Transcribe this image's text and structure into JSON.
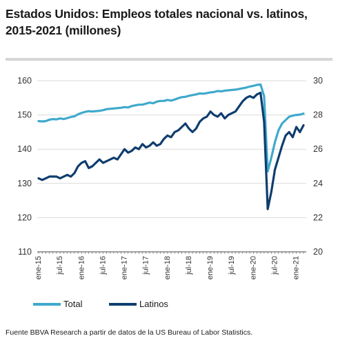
{
  "title": "Estados Unidos: Empleos totales nacional vs. latinos, 2015-2021 (millones)",
  "source": "Fuente BBVA Research a partir de datos de la US Bureau of Labor Statistics.",
  "colors": {
    "total": "#3fa9cc",
    "latinos": "#0f3d6e",
    "grid": "#d9d9d9"
  },
  "chart_data": {
    "type": "line",
    "x_tick_labels": [
      "ene-15",
      "jul-15",
      "ene-16",
      "jul-16",
      "ene-17",
      "jul-17",
      "ene-18",
      "jul-18",
      "ene-19",
      "jul-19",
      "ene-20",
      "jul-20",
      "ene-21"
    ],
    "y_left": {
      "min": 110,
      "max": 160,
      "ticks": [
        110,
        120,
        130,
        140,
        150,
        160
      ]
    },
    "y_right": {
      "min": 20,
      "max": 30,
      "ticks": [
        20,
        22,
        24,
        26,
        28,
        30
      ]
    },
    "grid": "horizontal",
    "legend_placement": "bottom",
    "series": [
      {
        "name": "Total",
        "axis": "left",
        "x": [
          "2015-01",
          "2015-02",
          "2015-03",
          "2015-04",
          "2015-05",
          "2015-06",
          "2015-07",
          "2015-08",
          "2015-09",
          "2015-10",
          "2015-11",
          "2015-12",
          "2016-01",
          "2016-02",
          "2016-03",
          "2016-04",
          "2016-05",
          "2016-06",
          "2016-07",
          "2016-08",
          "2016-09",
          "2016-10",
          "2016-11",
          "2016-12",
          "2017-01",
          "2017-02",
          "2017-03",
          "2017-04",
          "2017-05",
          "2017-06",
          "2017-07",
          "2017-08",
          "2017-09",
          "2017-10",
          "2017-11",
          "2017-12",
          "2018-01",
          "2018-02",
          "2018-03",
          "2018-04",
          "2018-05",
          "2018-06",
          "2018-07",
          "2018-08",
          "2018-09",
          "2018-10",
          "2018-11",
          "2018-12",
          "2019-01",
          "2019-02",
          "2019-03",
          "2019-04",
          "2019-05",
          "2019-06",
          "2019-07",
          "2019-08",
          "2019-09",
          "2019-10",
          "2019-11",
          "2019-12",
          "2020-01",
          "2020-02",
          "2020-03",
          "2020-04",
          "2020-05",
          "2020-06",
          "2020-07",
          "2020-08",
          "2020-09",
          "2020-10",
          "2020-11",
          "2020-12",
          "2021-01",
          "2021-02",
          "2021-03"
        ],
        "values": [
          148.2,
          148.1,
          148.2,
          148.6,
          148.8,
          148.7,
          149.0,
          148.8,
          149.1,
          149.4,
          149.6,
          150.2,
          150.6,
          150.9,
          151.1,
          151.0,
          151.1,
          151.2,
          151.4,
          151.7,
          151.8,
          151.9,
          152.0,
          152.1,
          152.3,
          152.2,
          152.6,
          152.8,
          153.0,
          153.0,
          153.3,
          153.6,
          153.4,
          153.9,
          154.1,
          154.1,
          154.4,
          154.2,
          154.5,
          154.9,
          155.2,
          155.3,
          155.6,
          155.8,
          156.0,
          156.3,
          156.2,
          156.4,
          156.6,
          156.7,
          157.0,
          156.9,
          157.1,
          157.2,
          157.3,
          157.4,
          157.6,
          157.8,
          158.0,
          158.3,
          158.5,
          158.8,
          158.9,
          155.5,
          133.5,
          137.5,
          142.0,
          145.5,
          147.5,
          148.5,
          149.5,
          149.8,
          150.0,
          150.1,
          150.4
        ]
      },
      {
        "name": "Latinos",
        "axis": "right",
        "x": [
          "2015-01",
          "2015-02",
          "2015-03",
          "2015-04",
          "2015-05",
          "2015-06",
          "2015-07",
          "2015-08",
          "2015-09",
          "2015-10",
          "2015-11",
          "2015-12",
          "2016-01",
          "2016-02",
          "2016-03",
          "2016-04",
          "2016-05",
          "2016-06",
          "2016-07",
          "2016-08",
          "2016-09",
          "2016-10",
          "2016-11",
          "2016-12",
          "2017-01",
          "2017-02",
          "2017-03",
          "2017-04",
          "2017-05",
          "2017-06",
          "2017-07",
          "2017-08",
          "2017-09",
          "2017-10",
          "2017-11",
          "2017-12",
          "2018-01",
          "2018-02",
          "2018-03",
          "2018-04",
          "2018-05",
          "2018-06",
          "2018-07",
          "2018-08",
          "2018-09",
          "2018-10",
          "2018-11",
          "2018-12",
          "2019-01",
          "2019-02",
          "2019-03",
          "2019-04",
          "2019-05",
          "2019-06",
          "2019-07",
          "2019-08",
          "2019-09",
          "2019-10",
          "2019-11",
          "2019-12",
          "2020-01",
          "2020-02",
          "2020-03",
          "2020-04",
          "2020-05",
          "2020-06",
          "2020-07",
          "2020-08",
          "2020-09",
          "2020-10",
          "2020-11",
          "2020-12",
          "2021-01",
          "2021-02",
          "2021-03"
        ],
        "values": [
          24.3,
          24.2,
          24.3,
          24.4,
          24.4,
          24.4,
          24.3,
          24.4,
          24.5,
          24.4,
          24.6,
          25.0,
          25.2,
          25.3,
          24.9,
          25.0,
          25.2,
          25.4,
          25.2,
          25.3,
          25.4,
          25.5,
          25.4,
          25.7,
          26.0,
          25.8,
          25.9,
          26.1,
          26.0,
          26.3,
          26.1,
          26.2,
          26.4,
          26.2,
          26.3,
          26.6,
          26.8,
          26.7,
          27.0,
          27.1,
          27.3,
          27.5,
          27.2,
          27.0,
          27.2,
          27.6,
          27.8,
          27.9,
          28.2,
          28.0,
          27.9,
          28.1,
          27.8,
          28.0,
          28.1,
          28.2,
          28.5,
          28.8,
          29.0,
          29.1,
          29.0,
          29.2,
          29.3,
          27.6,
          22.5,
          23.5,
          24.8,
          25.5,
          26.2,
          26.8,
          27.0,
          26.7,
          27.3,
          27.0,
          27.4
        ]
      }
    ]
  }
}
